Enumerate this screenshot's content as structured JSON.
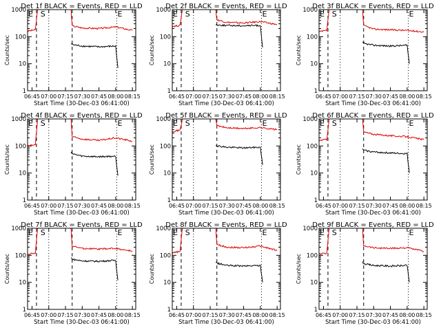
{
  "chart_data": [
    {
      "type": "line",
      "title": "Det 1f BLACK = Events, RED = LLD",
      "ylabel": "Counts/sec",
      "xlabel": "Start Time (30-Dec-03 06:41:00)",
      "x_ticks": [
        "06:45",
        "07:00",
        "07:15",
        "07:30",
        "07:45",
        "08:00",
        "08:15"
      ],
      "y_ticks": [
        "1",
        "10",
        "100",
        "1000"
      ],
      "ylim": [
        1,
        1000
      ],
      "yscale": "log",
      "markers": [
        {
          "label": "E",
          "x": "06:41"
        },
        {
          "label": "S",
          "x": "06:52"
        },
        {
          "label": "E",
          "x": "08:01"
        }
      ],
      "series": [
        {
          "name": "RED",
          "color": "#e00000",
          "x": [
            "06:41",
            "06:48",
            "06:50",
            "06:52",
            "06:53",
            "07:20",
            "07:21",
            "07:30",
            "07:45",
            "08:00",
            "08:15"
          ],
          "y": [
            160,
            180,
            1000,
            1000,
            1000,
            1000,
            250,
            210,
            200,
            230,
            170
          ]
        },
        {
          "name": "BLACK",
          "color": "#000000",
          "x": [
            "07:20",
            "07:22",
            "07:30",
            "07:45",
            "08:00",
            "08:02"
          ],
          "y": [
            55,
            50,
            45,
            42,
            45,
            7
          ]
        }
      ]
    },
    {
      "type": "line",
      "title": "Det 2f BLACK = Events, RED = LLD",
      "ylabel": "Counts/sec",
      "xlabel": "Start Time (30-Dec-03 06:41:00)",
      "x_ticks": [
        "06:45",
        "07:00",
        "07:15",
        "07:30",
        "07:45",
        "08:00",
        "08:15"
      ],
      "y_ticks": [
        "1",
        "10",
        "100",
        "1000"
      ],
      "ylim": [
        1,
        1000
      ],
      "yscale": "log",
      "markers": [
        {
          "label": "E",
          "x": "06:41"
        },
        {
          "label": "S",
          "x": "06:52"
        },
        {
          "label": "E",
          "x": "08:01"
        }
      ],
      "series": [
        {
          "name": "RED",
          "color": "#e00000",
          "x": [
            "06:41",
            "06:48",
            "06:50",
            "06:52",
            "06:53",
            "07:20",
            "07:21",
            "07:30",
            "07:45",
            "08:00",
            "08:15"
          ],
          "y": [
            240,
            260,
            1000,
            1000,
            1000,
            1000,
            420,
            340,
            320,
            360,
            280
          ]
        },
        {
          "name": "BLACK",
          "color": "#000000",
          "x": [
            "07:20",
            "07:22",
            "07:30",
            "07:45",
            "08:00",
            "08:02"
          ],
          "y": [
            280,
            270,
            260,
            255,
            260,
            40
          ]
        }
      ]
    },
    {
      "type": "line",
      "title": "Det 3f BLACK = Events, RED = LLD",
      "ylabel": "Counts/sec",
      "xlabel": "Start Time (30-Dec-03 06:41:00)",
      "x_ticks": [
        "06:45",
        "07:00",
        "07:15",
        "07:30",
        "07:45",
        "08:00",
        "08:15"
      ],
      "y_ticks": [
        "1",
        "10",
        "100",
        "1000"
      ],
      "ylim": [
        1,
        1000
      ],
      "yscale": "log",
      "markers": [
        {
          "label": "E",
          "x": "06:41"
        },
        {
          "label": "S",
          "x": "06:52"
        },
        {
          "label": "E",
          "x": "08:01"
        }
      ],
      "series": [
        {
          "name": "RED",
          "color": "#e00000",
          "x": [
            "06:41",
            "06:48",
            "06:50",
            "06:52",
            "06:53",
            "07:20",
            "07:21",
            "07:30",
            "07:45",
            "08:00",
            "08:15"
          ],
          "y": [
            150,
            170,
            1000,
            1000,
            1000,
            1000,
            260,
            190,
            180,
            170,
            150
          ]
        },
        {
          "name": "BLACK",
          "color": "#000000",
          "x": [
            "07:20",
            "07:22",
            "07:30",
            "07:45",
            "08:00",
            "08:02"
          ],
          "y": [
            60,
            55,
            48,
            45,
            48,
            10
          ]
        }
      ]
    },
    {
      "type": "line",
      "title": "Det 4f BLACK = Events, RED = LLD",
      "ylabel": "Counts/sec",
      "xlabel": "Start Time (30-Dec-03 06:41:00)",
      "x_ticks": [
        "06:45",
        "07:00",
        "07:15",
        "07:30",
        "07:45",
        "08:00",
        "08:15"
      ],
      "y_ticks": [
        "1",
        "10",
        "100",
        "1000"
      ],
      "ylim": [
        1,
        1000
      ],
      "yscale": "log",
      "markers": [
        {
          "label": "E",
          "x": "06:41"
        },
        {
          "label": "S",
          "x": "06:52"
        },
        {
          "label": "E",
          "x": "08:01"
        }
      ],
      "series": [
        {
          "name": "RED",
          "color": "#e00000",
          "x": [
            "06:41",
            "06:48",
            "06:50",
            "06:52",
            "06:53",
            "07:20",
            "07:21",
            "07:30",
            "07:45",
            "08:00",
            "08:15"
          ],
          "y": [
            100,
            110,
            1000,
            1000,
            1000,
            1000,
            220,
            180,
            160,
            200,
            150
          ]
        },
        {
          "name": "BLACK",
          "color": "#000000",
          "x": [
            "07:20",
            "07:22",
            "07:30",
            "07:45",
            "08:00",
            "08:02"
          ],
          "y": [
            60,
            50,
            42,
            40,
            42,
            8
          ]
        }
      ]
    },
    {
      "type": "line",
      "title": "Det 5f BLACK = Events, RED = LLD",
      "ylabel": "Counts/sec",
      "xlabel": "Start Time (30-Dec-03 06:41:00)",
      "x_ticks": [
        "06:45",
        "07:00",
        "07:15",
        "07:30",
        "07:45",
        "08:00",
        "08:15"
      ],
      "y_ticks": [
        "1",
        "10",
        "100",
        "1000"
      ],
      "ylim": [
        1,
        1000
      ],
      "yscale": "log",
      "markers": [
        {
          "label": "E",
          "x": "06:41"
        },
        {
          "label": "S",
          "x": "06:52"
        },
        {
          "label": "E",
          "x": "08:01"
        }
      ],
      "series": [
        {
          "name": "RED",
          "color": "#e00000",
          "x": [
            "06:41",
            "06:48",
            "06:50",
            "06:52",
            "06:53",
            "07:20",
            "07:21",
            "07:30",
            "07:45",
            "08:00",
            "08:15"
          ],
          "y": [
            350,
            380,
            1000,
            1000,
            1000,
            1000,
            560,
            470,
            440,
            480,
            400
          ]
        },
        {
          "name": "BLACK",
          "color": "#000000",
          "x": [
            "07:20",
            "07:22",
            "07:30",
            "07:45",
            "08:00",
            "08:02"
          ],
          "y": [
            110,
            100,
            90,
            85,
            90,
            20
          ]
        }
      ]
    },
    {
      "type": "line",
      "title": "Det 6f BLACK = Events, RED = LLD",
      "ylabel": "Counts/sec",
      "xlabel": "Start Time (30-Dec-03 06:41:00)",
      "x_ticks": [
        "06:45",
        "07:00",
        "07:15",
        "07:30",
        "07:45",
        "08:00",
        "08:15"
      ],
      "y_ticks": [
        "1",
        "10",
        "100",
        "1000"
      ],
      "ylim": [
        1,
        1000
      ],
      "yscale": "log",
      "markers": [
        {
          "label": "E",
          "x": "06:41"
        },
        {
          "label": "S",
          "x": "06:52"
        },
        {
          "label": "E",
          "x": "08:01"
        }
      ],
      "series": [
        {
          "name": "RED",
          "color": "#e00000",
          "x": [
            "06:41",
            "06:48",
            "06:50",
            "06:52",
            "06:53",
            "07:20",
            "07:21",
            "07:30",
            "07:45",
            "08:00",
            "08:15"
          ],
          "y": [
            160,
            175,
            1000,
            1000,
            1000,
            1000,
            330,
            270,
            240,
            220,
            170
          ]
        },
        {
          "name": "BLACK",
          "color": "#000000",
          "x": [
            "07:20",
            "07:22",
            "07:30",
            "07:45",
            "08:00",
            "08:02"
          ],
          "y": [
            75,
            68,
            60,
            55,
            52,
            10
          ]
        }
      ]
    },
    {
      "type": "line",
      "title": "Det 7f BLACK = Events, RED = LLD",
      "ylabel": "Counts/sec",
      "xlabel": "Start Time (30-Dec-03 06:41:00)",
      "x_ticks": [
        "06:45",
        "07:00",
        "07:15",
        "07:30",
        "07:45",
        "08:00",
        "08:15"
      ],
      "y_ticks": [
        "1",
        "10",
        "100",
        "1000"
      ],
      "ylim": [
        1,
        1000
      ],
      "yscale": "log",
      "markers": [
        {
          "label": "E",
          "x": "06:41"
        },
        {
          "label": "S",
          "x": "06:52"
        },
        {
          "label": "E",
          "x": "08:01"
        }
      ],
      "series": [
        {
          "name": "RED",
          "color": "#e00000",
          "x": [
            "06:41",
            "06:48",
            "06:50",
            "06:52",
            "06:53",
            "07:20",
            "07:21",
            "07:30",
            "07:45",
            "08:00",
            "08:15"
          ],
          "y": [
            110,
            120,
            1000,
            1000,
            1000,
            1000,
            220,
            180,
            170,
            180,
            140
          ]
        },
        {
          "name": "BLACK",
          "color": "#000000",
          "x": [
            "07:20",
            "07:22",
            "07:30",
            "07:45",
            "08:00",
            "08:02"
          ],
          "y": [
            80,
            70,
            62,
            60,
            65,
            12
          ]
        }
      ]
    },
    {
      "type": "line",
      "title": "Det 8f BLACK = Events, RED = LLD",
      "ylabel": "Counts/sec",
      "xlabel": "Start Time (30-Dec-03 06:41:00)",
      "x_ticks": [
        "06:45",
        "07:00",
        "07:15",
        "07:30",
        "07:45",
        "08:00",
        "08:15"
      ],
      "y_ticks": [
        "1",
        "10",
        "100",
        "1000"
      ],
      "ylim": [
        1,
        1000
      ],
      "yscale": "log",
      "markers": [
        {
          "label": "E",
          "x": "06:41"
        },
        {
          "label": "S",
          "x": "06:52"
        },
        {
          "label": "E",
          "x": "08:01"
        }
      ],
      "series": [
        {
          "name": "RED",
          "color": "#e00000",
          "x": [
            "06:41",
            "06:48",
            "06:50",
            "06:52",
            "06:53",
            "07:20",
            "07:21",
            "07:30",
            "07:45",
            "08:00",
            "08:15"
          ],
          "y": [
            120,
            140,
            1000,
            1000,
            1000,
            1000,
            250,
            200,
            190,
            220,
            150
          ]
        },
        {
          "name": "BLACK",
          "color": "#000000",
          "x": [
            "07:20",
            "07:22",
            "07:30",
            "07:45",
            "08:00",
            "08:02"
          ],
          "y": [
            55,
            50,
            42,
            40,
            42,
            10
          ]
        }
      ]
    },
    {
      "type": "line",
      "title": "Det 9f BLACK = Events, RED = LLD",
      "ylabel": "Counts/sec",
      "xlabel": "Start Time (30-Dec-03 06:41:00)",
      "x_ticks": [
        "06:45",
        "07:00",
        "07:15",
        "07:30",
        "07:45",
        "08:00",
        "08:15"
      ],
      "y_ticks": [
        "1",
        "10",
        "100",
        "1000"
      ],
      "ylim": [
        1,
        1000
      ],
      "yscale": "log",
      "markers": [
        {
          "label": "E",
          "x": "06:41"
        },
        {
          "label": "S",
          "x": "06:52"
        },
        {
          "label": "E",
          "x": "08:01"
        }
      ],
      "series": [
        {
          "name": "RED",
          "color": "#e00000",
          "x": [
            "06:41",
            "06:48",
            "06:50",
            "06:52",
            "06:53",
            "07:20",
            "07:21",
            "07:30",
            "07:45",
            "08:00",
            "08:15"
          ],
          "y": [
            110,
            120,
            1000,
            1000,
            1000,
            1000,
            230,
            190,
            180,
            190,
            140
          ]
        },
        {
          "name": "BLACK",
          "color": "#000000",
          "x": [
            "07:20",
            "07:22",
            "07:30",
            "07:45",
            "08:00",
            "08:02"
          ],
          "y": [
            55,
            48,
            42,
            40,
            42,
            10
          ]
        }
      ]
    }
  ]
}
